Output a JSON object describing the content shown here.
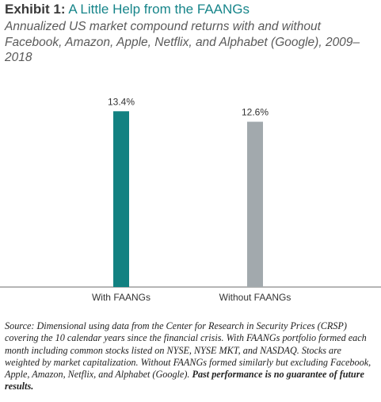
{
  "header": {
    "exhibit_label": "Exhibit 1:",
    "title": "A Little Help from the FAANGs",
    "subtitle": "Annualized US market compound returns with and without Facebook, Amazon, Apple, Netflix, and Alphabet (Google), 2009–2018"
  },
  "chart_data": {
    "type": "bar",
    "categories": [
      "With FAANGs",
      "Without FAANGs"
    ],
    "values": [
      13.4,
      12.6
    ],
    "labels": [
      "13.4%",
      "12.6%"
    ],
    "colors": [
      "#128181",
      "#a2a9ad"
    ],
    "ylim": [
      0,
      13.6
    ],
    "grid": false,
    "xlabel": "",
    "ylabel": ""
  },
  "footnote": {
    "source": "Source: Dimensional using data from the Center for Research in Security Prices (CRSP) covering the 10 calendar years since the financial crisis. With FAANGs portfolio formed each month including common stocks listed on NYSE, NYSE MKT, and NASDAQ. Stocks are weighted by market capitalization. Without FAANGs formed similarly but excluding Facebook, Apple, Amazon, Netflix, and Alphabet (Google).",
    "disclaimer": "Past performance is no guarantee of future results."
  }
}
